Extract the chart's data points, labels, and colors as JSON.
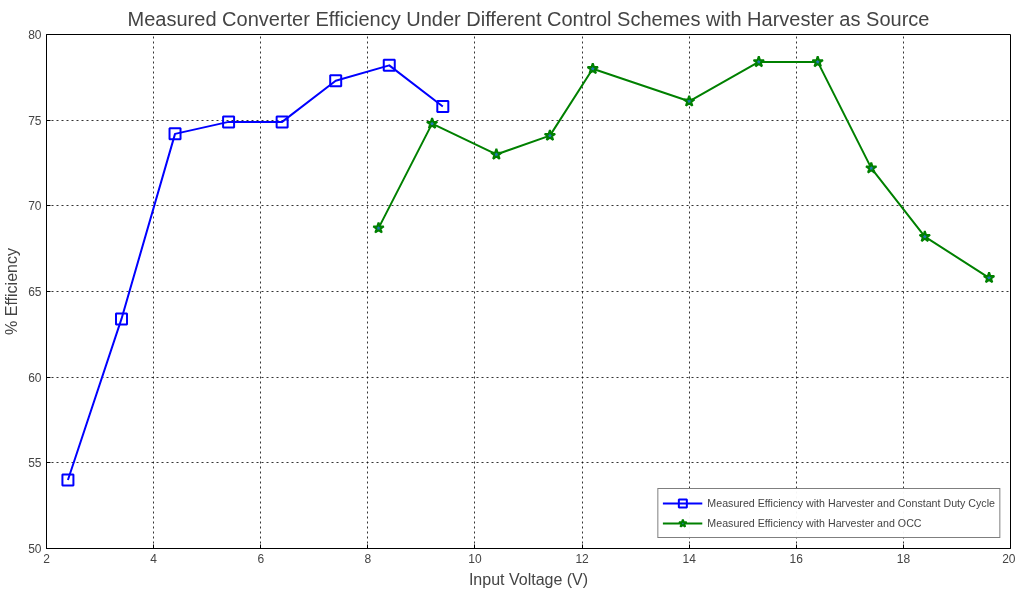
{
  "chart_data": {
    "type": "line",
    "title": "Measured Converter Efficiency Under Different Control Schemes with Harvester as Source",
    "xlabel": "Input Voltage (V)",
    "ylabel": "% Efficiency",
    "xlim": [
      2,
      20
    ],
    "ylim": [
      50,
      80
    ],
    "xticks": [
      2,
      4,
      6,
      8,
      10,
      12,
      14,
      16,
      18,
      20
    ],
    "yticks": [
      50,
      55,
      60,
      65,
      70,
      75,
      80
    ],
    "grid": true,
    "legend": "bottom right",
    "line_style": "solid",
    "series": [
      {
        "name": "Measured Efficiency with Harvester and Constant Duty Cycle",
        "color": "#0000ff",
        "marker": "square",
        "x": [
          2.4,
          3.4,
          4.4,
          5.4,
          6.4,
          7.4,
          8.4,
          9.4
        ],
        "values": [
          54.0,
          63.4,
          74.2,
          74.9,
          74.9,
          77.3,
          78.2,
          75.8
        ]
      },
      {
        "name": "Measured Efficiency with Harvester and OCC",
        "color": "#008000",
        "marker": "star",
        "x": [
          8.2,
          9.2,
          10.4,
          11.4,
          12.2,
          14.0,
          15.3,
          16.4,
          17.4,
          18.4,
          19.6
        ],
        "values": [
          68.7,
          74.8,
          73.0,
          74.1,
          78.0,
          76.1,
          78.4,
          78.4,
          72.2,
          68.2,
          65.8
        ]
      }
    ]
  }
}
